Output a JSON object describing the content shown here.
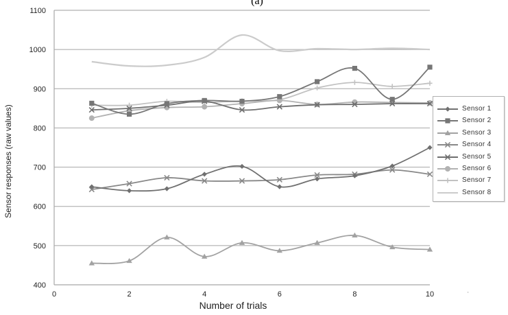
{
  "chart_data": {
    "type": "line",
    "title": "(a)",
    "xlabel": "Number of trials",
    "ylabel": "Sensor responses (raw values)",
    "xlim": [
      0,
      10
    ],
    "ylim": [
      400,
      1100
    ],
    "x_ticks": [
      0,
      2,
      4,
      6,
      8,
      10
    ],
    "y_ticks": [
      400,
      500,
      600,
      700,
      800,
      900,
      1000,
      1100
    ],
    "grid": "horizontal",
    "legend_position": "right",
    "x": [
      1,
      2,
      3,
      4,
      5,
      6,
      7,
      8,
      9,
      10
    ],
    "series": [
      {
        "name": "Sensor 1",
        "marker": "diamond",
        "color": "#707070",
        "values": [
          650,
          640,
          645,
          682,
          702,
          650,
          670,
          678,
          703,
          750
        ]
      },
      {
        "name": "Sensor 2",
        "marker": "square",
        "color": "#767676",
        "values": [
          863,
          835,
          862,
          870,
          868,
          880,
          918,
          952,
          873,
          955
        ]
      },
      {
        "name": "Sensor 3",
        "marker": "triangle",
        "color": "#a2a2a2",
        "values": [
          455,
          461,
          521,
          472,
          507,
          487,
          507,
          526,
          496,
          490
        ]
      },
      {
        "name": "Sensor 4",
        "marker": "x",
        "color": "#888888",
        "values": [
          643,
          658,
          673,
          665,
          665,
          668,
          680,
          682,
          693,
          682
        ]
      },
      {
        "name": "Sensor 5",
        "marker": "x",
        "color": "#6e6e6e",
        "values": [
          846,
          850,
          858,
          868,
          846,
          854,
          859,
          860,
          862,
          862
        ]
      },
      {
        "name": "Sensor 6",
        "marker": "circle",
        "color": "#b2b2b2",
        "values": [
          825,
          844,
          852,
          854,
          862,
          870,
          860,
          866,
          865,
          864
        ]
      },
      {
        "name": "Sensor 7",
        "marker": "plus",
        "color": "#c2c2c2",
        "values": [
          858,
          858,
          868,
          865,
          869,
          872,
          902,
          916,
          906,
          914
        ]
      },
      {
        "name": "Sensor 8",
        "marker": "none",
        "color": "#cbcbcb",
        "values": [
          969,
          958,
          960,
          980,
          1037,
          997,
          1002,
          1000,
          1003,
          1000
        ]
      }
    ]
  },
  "footnote_mark": "'"
}
